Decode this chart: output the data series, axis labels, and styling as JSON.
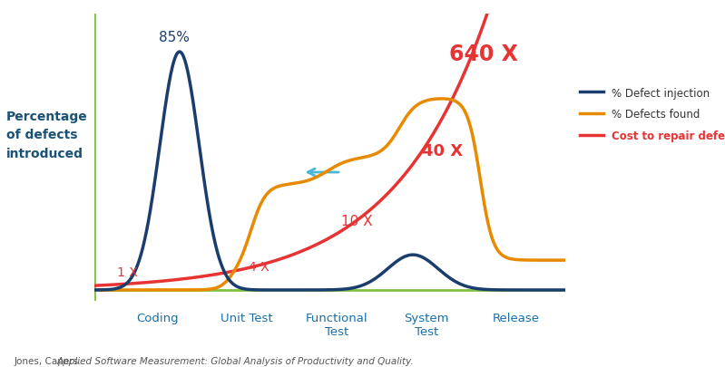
{
  "background_color": "#ffffff",
  "ylabel": "Percentage\nof defects\nintroduced",
  "ylabel_color": "#1a5276",
  "ylabel_fontsize": 10,
  "x_labels": [
    "Coding",
    "Unit Test",
    "Functional\nTest",
    "System\nTest",
    "Release"
  ],
  "x_label_color": "#1a6fa8",
  "x_label_fontsize": 9.5,
  "axis_line_color": "#7fc243",
  "legend_entries": [
    "% Defect injection",
    "% Defects found",
    "Cost to repair defect"
  ],
  "legend_colors": [
    "#1b3d6e",
    "#e88a00",
    "#e63333"
  ],
  "legend_label_colors": [
    "#333333",
    "#333333",
    "#e63333"
  ],
  "di_color": "#1b3d6e",
  "df_color": "#e88a00",
  "cr_color": "#e63333",
  "arrow_color": "#4ab8d4",
  "citation_fontsize": 7.5,
  "citation_color": "#555555"
}
